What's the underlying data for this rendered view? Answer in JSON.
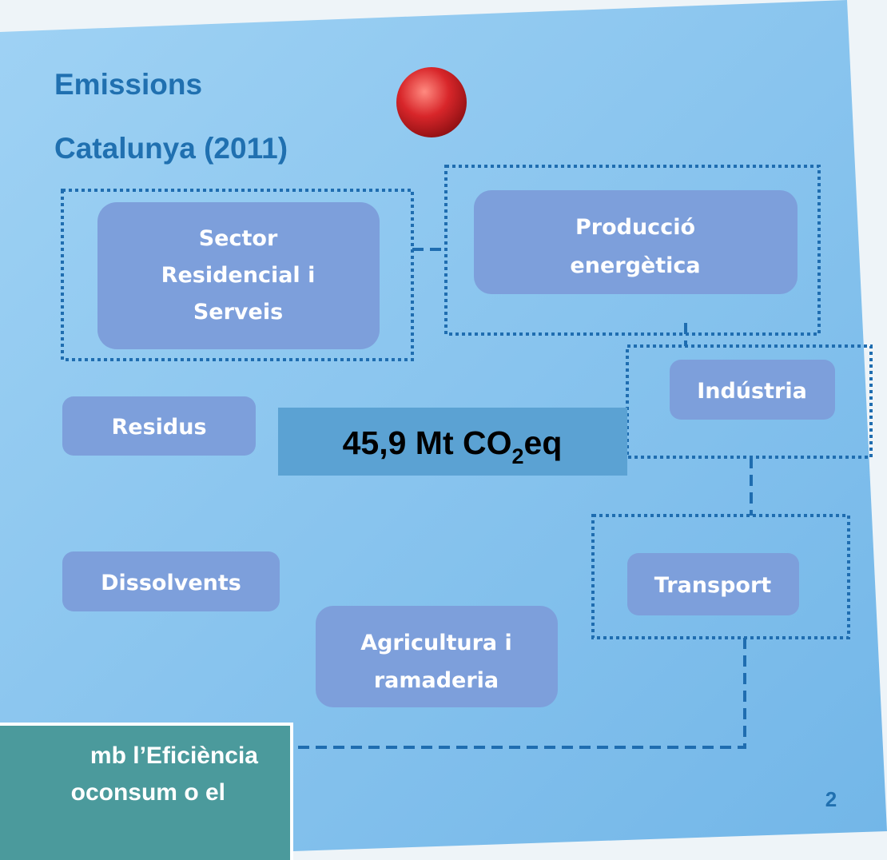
{
  "title": {
    "line1": "Emissions",
    "line2": "Catalunya (2011)"
  },
  "nodes": [
    {
      "label": [
        "Sector",
        "Residencial i",
        "Serveis"
      ]
    },
    {
      "label": [
        "Producció",
        "energètica"
      ]
    },
    {
      "label": [
        "Indústria"
      ]
    },
    {
      "label": [
        "Residus"
      ]
    },
    {
      "label": [
        "Dissolvents"
      ]
    },
    {
      "label": [
        "Transport"
      ]
    },
    {
      "label": [
        "Agricultura i",
        "ramaderia"
      ]
    }
  ],
  "total": {
    "main": "45,9 Mt CO",
    "subscript": "2",
    "suffix": "eq"
  },
  "callout": {
    "lines": [
      "mb l’Eficiència",
      "oconsum o el"
    ]
  },
  "page_number": "2"
}
